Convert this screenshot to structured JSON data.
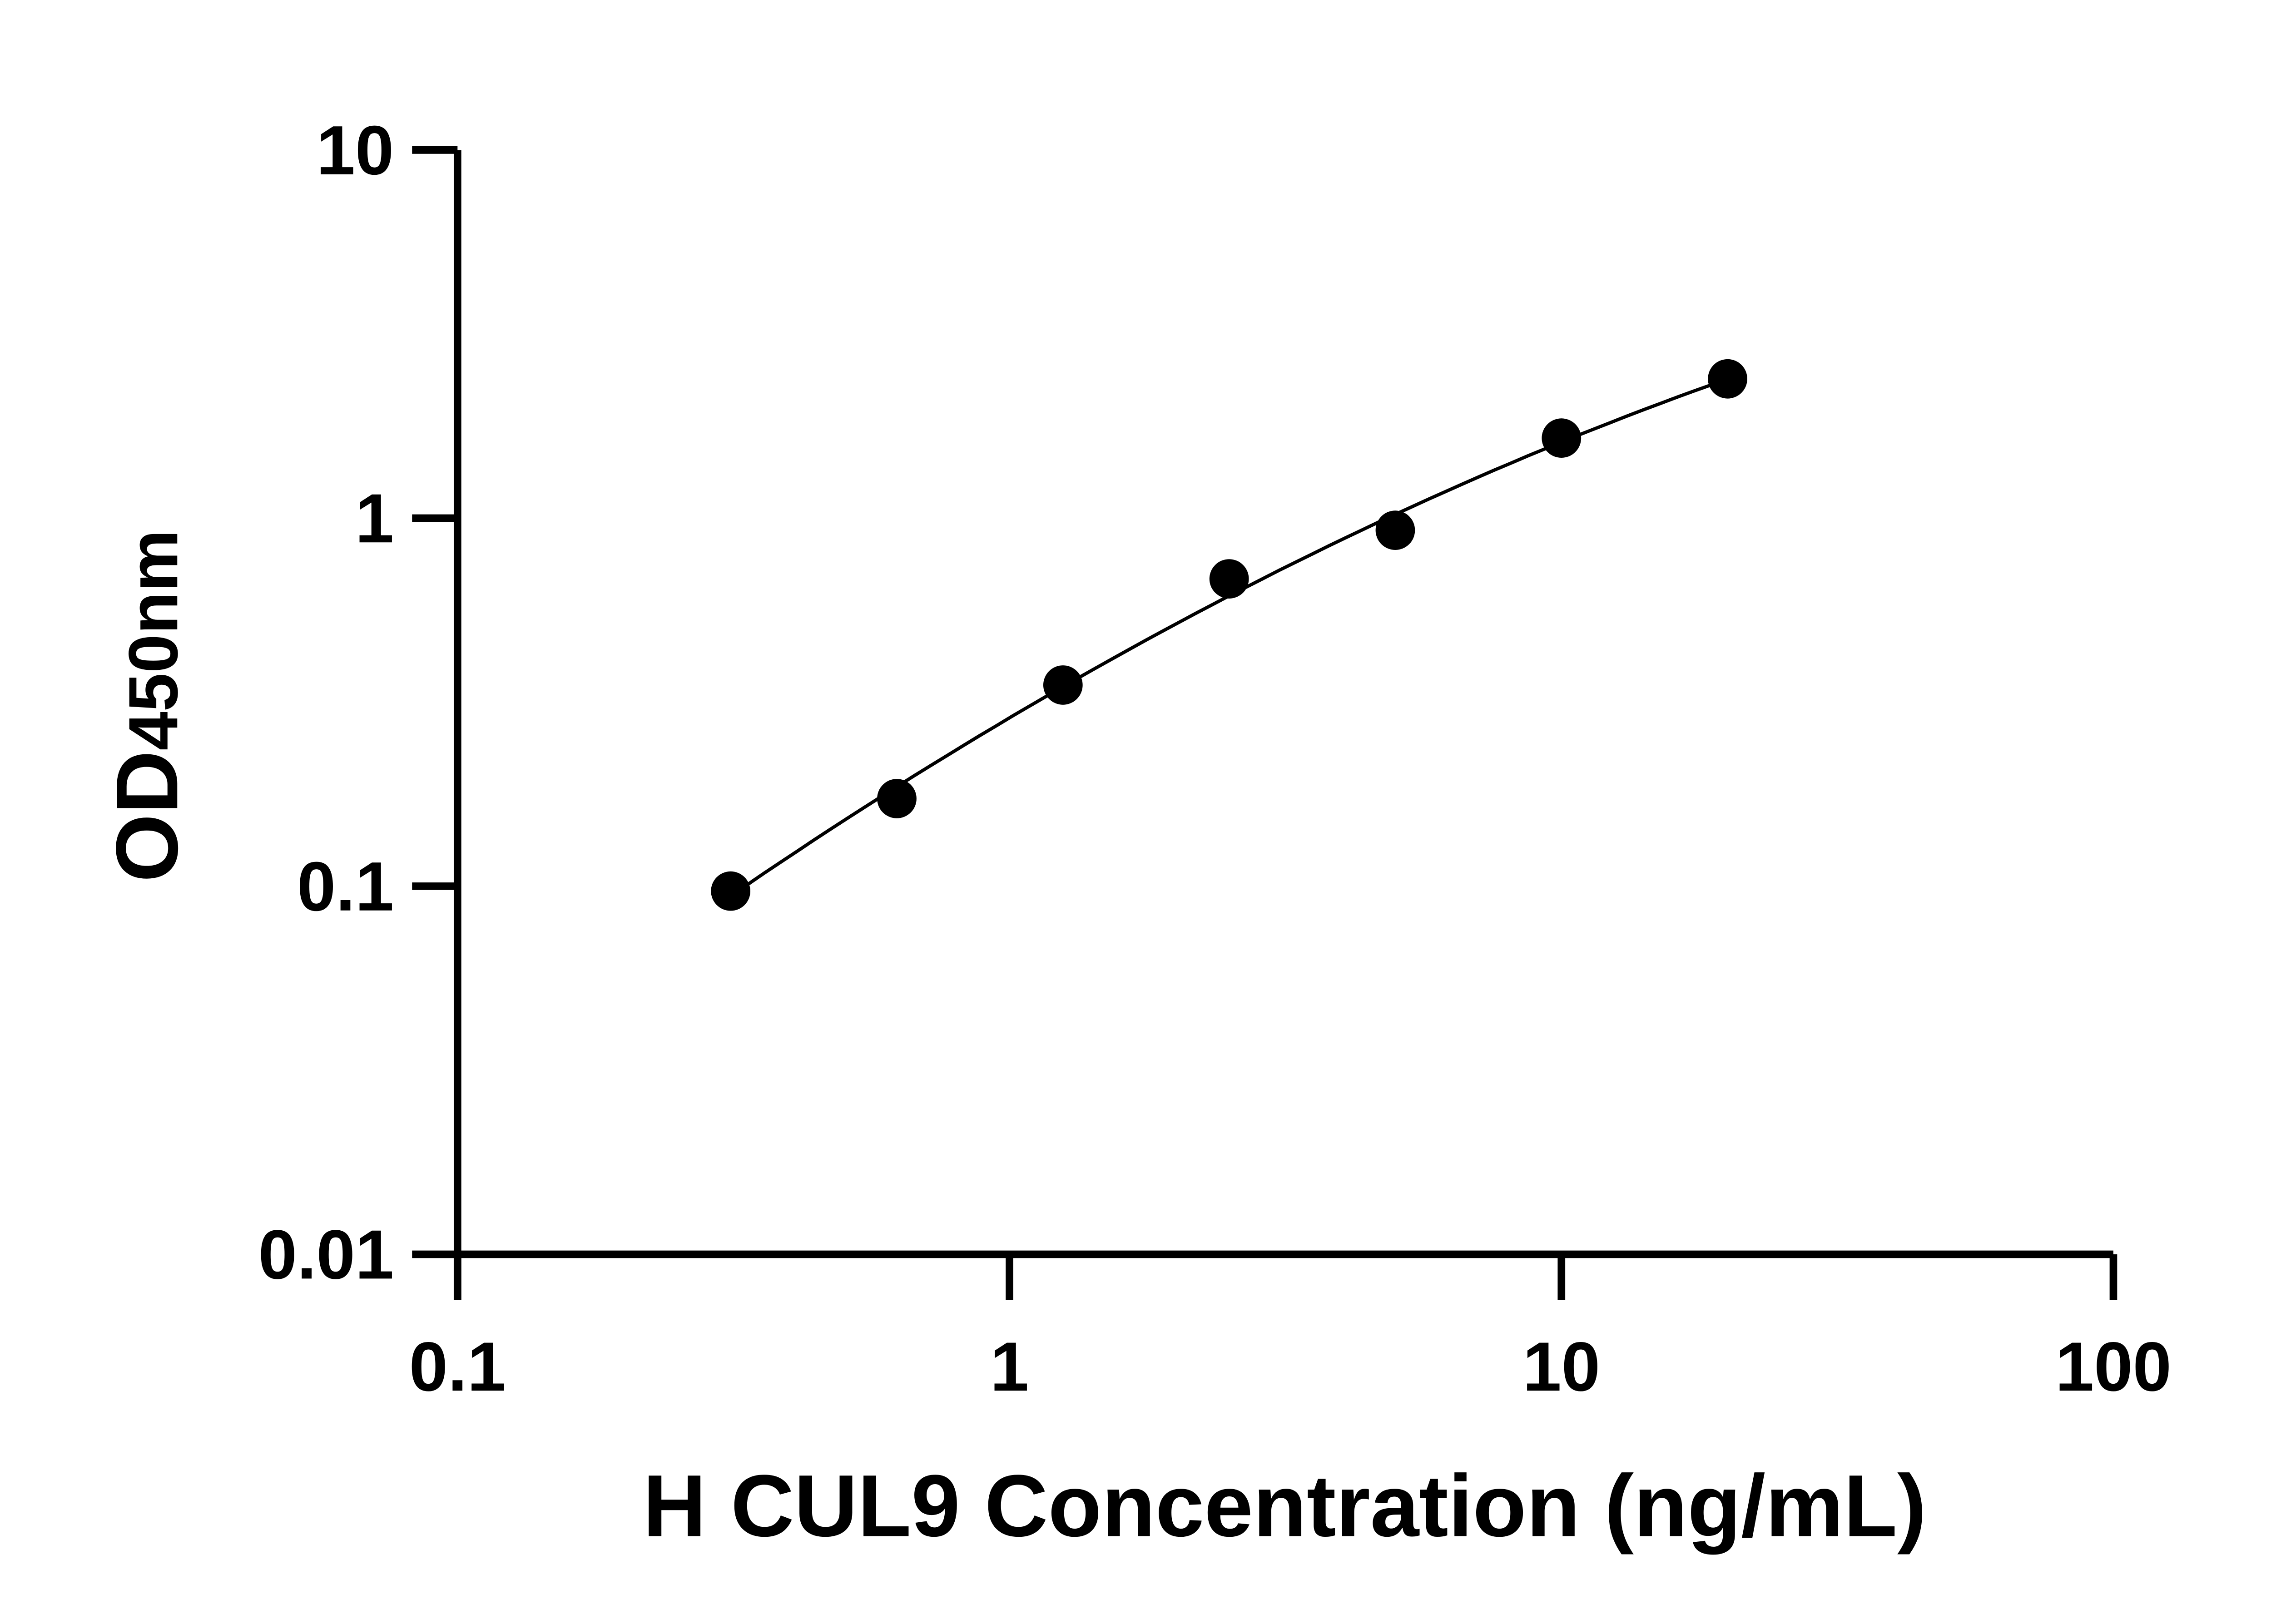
{
  "chart_data": {
    "type": "scatter",
    "title": "",
    "xlabel": "H CUL9 Concentration (ng/mL)",
    "ylabel_main": "OD",
    "ylabel_sub": "450nm",
    "xscale": "log",
    "yscale": "log",
    "xlim": [
      0.1,
      100
    ],
    "ylim": [
      0.01,
      10
    ],
    "xticks": [
      0.1,
      1,
      10,
      100
    ],
    "xtick_labels": [
      "0.1",
      "1",
      "10",
      "100"
    ],
    "yticks": [
      0.01,
      0.1,
      1,
      10
    ],
    "ytick_labels": [
      "0.01",
      "0.1",
      "1",
      "10"
    ],
    "grid": false,
    "fit_line": true,
    "marker_color": "#000000",
    "x": [
      0.3125,
      0.625,
      1.25,
      2.5,
      5,
      10,
      20
    ],
    "y": [
      0.097,
      0.173,
      0.352,
      0.684,
      0.927,
      1.65,
      2.39
    ]
  }
}
